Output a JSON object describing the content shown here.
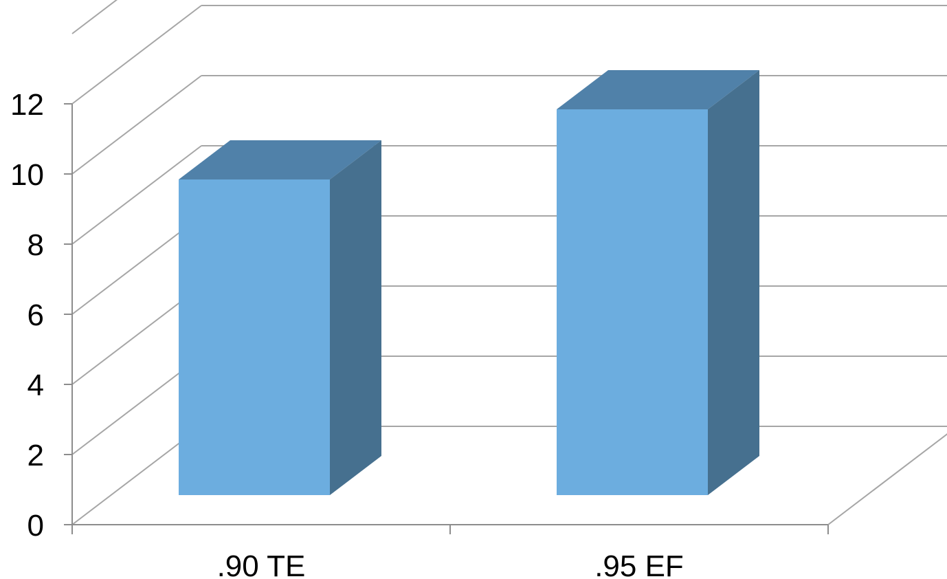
{
  "chart_data": {
    "type": "bar",
    "style": "3d-column",
    "categories": [
      ".90 TE",
      ".95 EF"
    ],
    "values": [
      9,
      11
    ],
    "title": "",
    "xlabel": "",
    "ylabel": "",
    "ylim": [
      0,
      12
    ],
    "yticks": [
      "0",
      "2",
      "4",
      "6",
      "8",
      "10",
      "12"
    ],
    "grid": true,
    "legend": "none",
    "colors": {
      "bar_front": "#6CADDF",
      "bar_top": "#5081A9",
      "bar_side": "#46708F",
      "grid": "#A6A6A6",
      "axis": "#8C8C8C"
    }
  }
}
